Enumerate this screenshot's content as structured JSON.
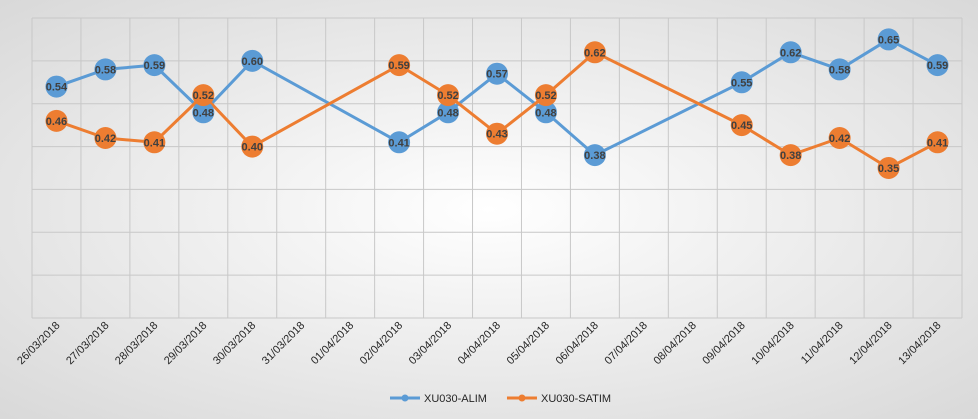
{
  "chart_data": {
    "type": "line",
    "title": "",
    "xlabel": "",
    "ylabel": "",
    "ylim": [
      0,
      0.7
    ],
    "grid": true,
    "legend_position": "bottom",
    "categories": [
      "26/03/2018",
      "27/03/2018",
      "28/03/2018",
      "29/03/2018",
      "30/03/2018",
      "31/03/2018",
      "01/04/2018",
      "02/04/2018",
      "03/04/2018",
      "04/04/2018",
      "05/04/2018",
      "06/04/2018",
      "07/04/2018",
      "08/04/2018",
      "09/04/2018",
      "10/04/2018",
      "11/04/2018",
      "12/04/2018",
      "13/04/2018"
    ],
    "series": [
      {
        "name": "XU030-ALIM",
        "color": "#5B9BD5",
        "values": [
          0.54,
          0.58,
          0.59,
          0.48,
          0.6,
          null,
          null,
          0.41,
          0.48,
          0.57,
          0.48,
          0.38,
          null,
          null,
          0.55,
          0.62,
          0.58,
          0.65,
          0.59
        ],
        "labels": [
          "0.54",
          "0.58",
          "0.59",
          "0.48",
          "0.60",
          "",
          "",
          "0.41",
          "0.48",
          "0.57",
          "0.48",
          "0.38",
          "",
          "",
          "0.55",
          "0.62",
          "0.58",
          "0.65",
          "0.59"
        ]
      },
      {
        "name": "XU030-SATIM",
        "color": "#ED7D31",
        "values": [
          0.46,
          0.42,
          0.41,
          0.52,
          0.4,
          null,
          null,
          0.59,
          0.52,
          0.43,
          0.52,
          0.62,
          null,
          null,
          0.45,
          0.38,
          0.42,
          0.35,
          0.41
        ],
        "labels": [
          "0.46",
          "0.42",
          "0.41",
          "0.52",
          "0.40",
          "",
          "",
          "0.59",
          "0.52",
          "0.43",
          "0.52",
          "0.62",
          "",
          "",
          "0.45",
          "0.38",
          "0.42",
          "0.35",
          "0.41"
        ]
      }
    ]
  }
}
